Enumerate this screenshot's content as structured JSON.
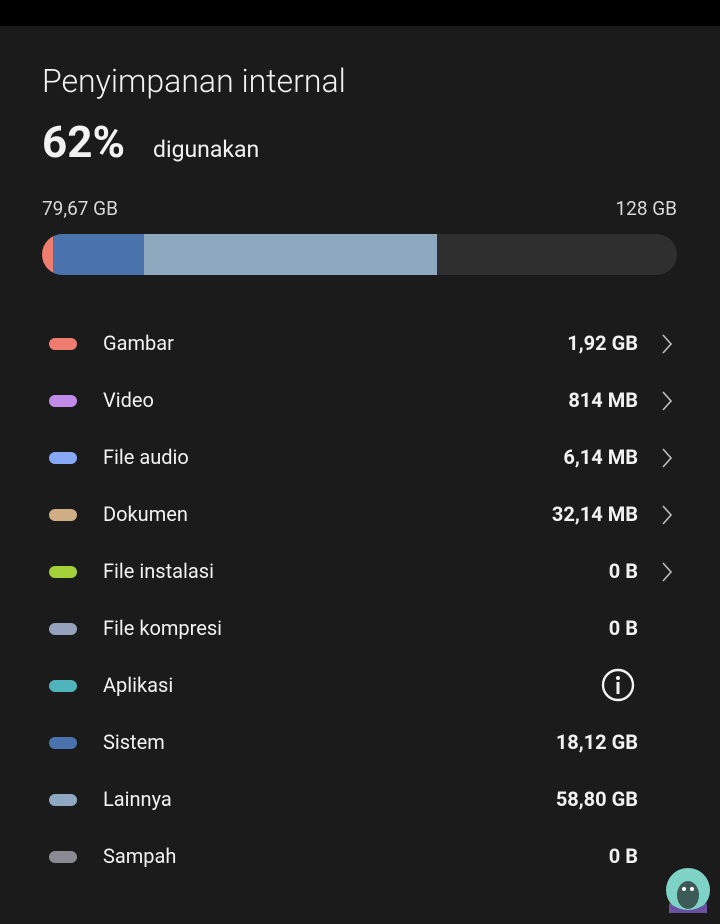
{
  "header": {
    "title": "Penyimpanan internal",
    "percent": "62%",
    "used_label": "digunakan"
  },
  "capacity": {
    "used": "79,67 GB",
    "total": "128 GB"
  },
  "items": [
    {
      "label": "Gambar",
      "value": "1,92 GB",
      "color": "#f07b6f",
      "chevron": true
    },
    {
      "label": "Video",
      "value": "814 MB",
      "color": "#c28bea",
      "chevron": true
    },
    {
      "label": "File audio",
      "value": "6,14 MB",
      "color": "#86a8f5",
      "chevron": true
    },
    {
      "label": "Dokumen",
      "value": "32,14 MB",
      "color": "#cfad85",
      "chevron": true
    },
    {
      "label": "File instalasi",
      "value": "0 B",
      "color": "#a3d13a",
      "chevron": true
    },
    {
      "label": "File kompresi",
      "value": "0 B",
      "color": "#94a3bb",
      "chevron": false
    },
    {
      "label": "Aplikasi",
      "color": "#4fb3bb",
      "info": true,
      "chevron": false
    },
    {
      "label": "Sistem",
      "value": "18,12 GB",
      "color": "#4a72ad",
      "chevron": false
    },
    {
      "label": "Lainnya",
      "value": "58,80 GB",
      "color": "#8ea9bf",
      "chevron": false
    },
    {
      "label": "Sampah",
      "value": "0 B",
      "color": "#8a8a92",
      "chevron": false
    }
  ]
}
